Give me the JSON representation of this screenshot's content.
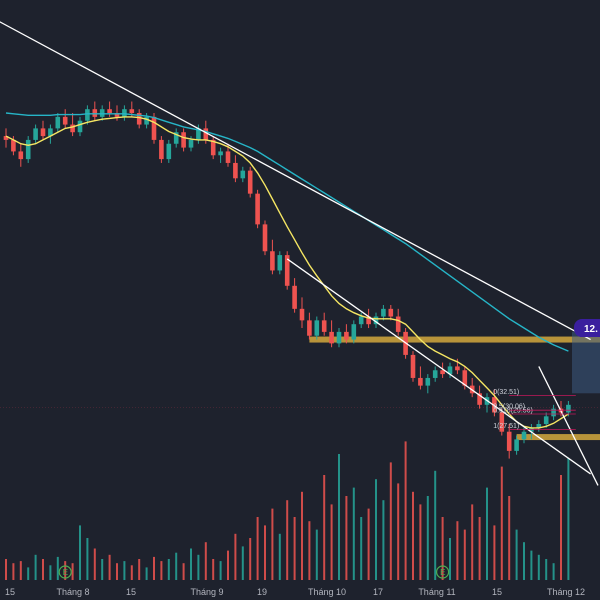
{
  "colors": {
    "background": "#1e222d",
    "up": "#26a69a",
    "down": "#ef5350",
    "vol_up": "#26a69a",
    "vol_down": "#ef5350",
    "ma_fast": "#f5e663",
    "ma_slow": "#26b5c7",
    "trendline": "#ffffff",
    "zone": "#c9a13c",
    "price_tag": "#3a1f9e",
    "projection": "#3d5a80"
  },
  "chart_data": {
    "type": "candlestick",
    "title": "",
    "xlabel": "",
    "ylabel": "",
    "x_ticks": [
      "15",
      "Tháng 8",
      "15",
      "Tháng 9",
      "19",
      "Tháng 10",
      "17",
      "Tháng 11",
      "15",
      "Tháng 12"
    ],
    "ylim": [
      10.6,
      16.2
    ],
    "ohlc": [
      [
        15.6,
        15.7,
        15.45,
        15.55
      ],
      [
        15.55,
        15.6,
        15.35,
        15.4
      ],
      [
        15.4,
        15.5,
        15.2,
        15.3
      ],
      [
        15.3,
        15.6,
        15.25,
        15.55
      ],
      [
        15.55,
        15.75,
        15.5,
        15.7
      ],
      [
        15.7,
        15.8,
        15.55,
        15.6
      ],
      [
        15.6,
        15.75,
        15.5,
        15.7
      ],
      [
        15.7,
        15.9,
        15.65,
        15.85
      ],
      [
        15.85,
        15.95,
        15.7,
        15.75
      ],
      [
        15.75,
        15.9,
        15.6,
        15.65
      ],
      [
        15.65,
        15.85,
        15.6,
        15.8
      ],
      [
        15.8,
        16.0,
        15.75,
        15.95
      ],
      [
        15.95,
        16.05,
        15.8,
        15.85
      ],
      [
        15.85,
        16.0,
        15.8,
        15.95
      ],
      [
        15.95,
        16.05,
        15.85,
        15.9
      ],
      [
        15.9,
        16.0,
        15.8,
        15.85
      ],
      [
        15.85,
        16.0,
        15.8,
        15.95
      ],
      [
        15.95,
        16.05,
        15.85,
        15.9
      ],
      [
        15.9,
        15.95,
        15.7,
        15.75
      ],
      [
        15.75,
        15.9,
        15.7,
        15.85
      ],
      [
        15.85,
        15.9,
        15.5,
        15.55
      ],
      [
        15.55,
        15.6,
        15.25,
        15.3
      ],
      [
        15.3,
        15.55,
        15.25,
        15.5
      ],
      [
        15.5,
        15.7,
        15.45,
        15.65
      ],
      [
        15.65,
        15.7,
        15.4,
        15.45
      ],
      [
        15.45,
        15.6,
        15.4,
        15.55
      ],
      [
        15.55,
        15.75,
        15.5,
        15.7
      ],
      [
        15.7,
        15.8,
        15.5,
        15.55
      ],
      [
        15.55,
        15.6,
        15.3,
        15.35
      ],
      [
        15.35,
        15.45,
        15.25,
        15.4
      ],
      [
        15.4,
        15.5,
        15.2,
        15.25
      ],
      [
        15.25,
        15.35,
        15.0,
        15.05
      ],
      [
        15.05,
        15.2,
        15.0,
        15.15
      ],
      [
        15.15,
        15.2,
        14.8,
        14.85
      ],
      [
        14.85,
        14.9,
        14.4,
        14.45
      ],
      [
        14.45,
        14.5,
        14.05,
        14.1
      ],
      [
        14.1,
        14.25,
        13.8,
        13.85
      ],
      [
        13.85,
        14.1,
        13.8,
        14.05
      ],
      [
        14.05,
        14.1,
        13.6,
        13.65
      ],
      [
        13.65,
        13.75,
        13.3,
        13.35
      ],
      [
        13.35,
        13.5,
        13.1,
        13.2
      ],
      [
        13.2,
        13.3,
        12.95,
        13.0
      ],
      [
        13.0,
        13.25,
        12.95,
        13.2
      ],
      [
        13.2,
        13.3,
        13.0,
        13.05
      ],
      [
        13.05,
        13.2,
        12.85,
        12.9
      ],
      [
        12.9,
        13.1,
        12.85,
        13.05
      ],
      [
        13.05,
        13.15,
        12.9,
        12.95
      ],
      [
        12.95,
        13.2,
        12.9,
        13.15
      ],
      [
        13.15,
        13.3,
        13.1,
        13.25
      ],
      [
        13.25,
        13.35,
        13.1,
        13.15
      ],
      [
        13.15,
        13.3,
        13.1,
        13.25
      ],
      [
        13.25,
        13.4,
        13.2,
        13.35
      ],
      [
        13.35,
        13.4,
        13.2,
        13.25
      ],
      [
        13.25,
        13.35,
        13.0,
        13.05
      ],
      [
        13.05,
        13.1,
        12.7,
        12.75
      ],
      [
        12.75,
        12.8,
        12.4,
        12.45
      ],
      [
        12.45,
        12.6,
        12.3,
        12.35
      ],
      [
        12.35,
        12.5,
        12.25,
        12.45
      ],
      [
        12.45,
        12.6,
        12.4,
        12.55
      ],
      [
        12.55,
        12.65,
        12.45,
        12.5
      ],
      [
        12.5,
        12.65,
        12.45,
        12.6
      ],
      [
        12.6,
        12.7,
        12.5,
        12.55
      ],
      [
        12.55,
        12.6,
        12.3,
        12.35
      ],
      [
        12.35,
        12.45,
        12.2,
        12.25
      ],
      [
        12.25,
        12.35,
        12.05,
        12.1
      ],
      [
        12.1,
        12.25,
        12.0,
        12.2
      ],
      [
        12.2,
        12.3,
        11.95,
        12.0
      ],
      [
        12.0,
        12.05,
        11.7,
        11.75
      ],
      [
        11.75,
        11.85,
        11.4,
        11.5
      ],
      [
        11.5,
        11.7,
        11.45,
        11.65
      ],
      [
        11.65,
        11.8,
        11.6,
        11.75
      ],
      [
        11.75,
        11.85,
        11.65,
        11.8
      ],
      [
        11.8,
        11.9,
        11.75,
        11.85
      ],
      [
        11.85,
        12.0,
        11.8,
        11.95
      ],
      [
        11.95,
        12.1,
        11.9,
        12.05
      ],
      [
        12.05,
        12.15,
        11.95,
        12.0
      ],
      [
        12.0,
        12.15,
        11.95,
        12.1
      ]
    ],
    "volume": [
      0.1,
      0.08,
      0.09,
      0.06,
      0.12,
      0.1,
      0.07,
      0.11,
      0.09,
      0.08,
      0.26,
      0.2,
      0.15,
      0.1,
      0.12,
      0.08,
      0.09,
      0.07,
      0.1,
      0.06,
      0.11,
      0.09,
      0.1,
      0.13,
      0.08,
      0.15,
      0.12,
      0.18,
      0.1,
      0.09,
      0.14,
      0.22,
      0.16,
      0.2,
      0.3,
      0.26,
      0.34,
      0.22,
      0.38,
      0.3,
      0.42,
      0.28,
      0.24,
      0.5,
      0.36,
      0.6,
      0.4,
      0.44,
      0.3,
      0.34,
      0.48,
      0.38,
      0.56,
      0.46,
      0.66,
      0.42,
      0.36,
      0.4,
      0.52,
      0.3,
      0.2,
      0.28,
      0.24,
      0.36,
      0.3,
      0.44,
      0.26,
      0.54,
      0.4,
      0.24,
      0.18,
      0.14,
      0.12,
      0.1,
      0.08,
      0.5,
      0.58
    ],
    "ma_fast": [
      15.6,
      15.55,
      15.5,
      15.48,
      15.5,
      15.55,
      15.6,
      15.65,
      15.7,
      15.72,
      15.75,
      15.78,
      15.8,
      15.82,
      15.83,
      15.84,
      15.85,
      15.85,
      15.84,
      15.82,
      15.78,
      15.72,
      15.66,
      15.62,
      15.58,
      15.56,
      15.55,
      15.55,
      15.53,
      15.5,
      15.46,
      15.4,
      15.34,
      15.25,
      15.12,
      14.96,
      14.78,
      14.6,
      14.42,
      14.25,
      14.08,
      13.92,
      13.78,
      13.65,
      13.52,
      13.42,
      13.35,
      13.3,
      13.26,
      13.23,
      13.22,
      13.22,
      13.22,
      13.2,
      13.15,
      13.05,
      12.95,
      12.86,
      12.8,
      12.75,
      12.7,
      12.66,
      12.6,
      12.52,
      12.42,
      12.32,
      12.22,
      12.1,
      11.98,
      11.88,
      11.82,
      11.8,
      11.8,
      11.82,
      11.86,
      11.92,
      11.98
    ],
    "ma_slow": [
      15.9,
      15.89,
      15.88,
      15.87,
      15.87,
      15.87,
      15.87,
      15.88,
      15.88,
      15.88,
      15.88,
      15.89,
      15.89,
      15.89,
      15.89,
      15.89,
      15.89,
      15.88,
      15.87,
      15.86,
      15.84,
      15.81,
      15.78,
      15.75,
      15.72,
      15.7,
      15.68,
      15.66,
      15.63,
      15.6,
      15.57,
      15.53,
      15.49,
      15.45,
      15.4,
      15.34,
      15.28,
      15.22,
      15.16,
      15.1,
      15.04,
      14.98,
      14.92,
      14.86,
      14.8,
      14.74,
      14.68,
      14.62,
      14.56,
      14.5,
      14.44,
      14.38,
      14.32,
      14.26,
      14.2,
      14.13,
      14.06,
      13.99,
      13.92,
      13.85,
      13.78,
      13.71,
      13.64,
      13.57,
      13.5,
      13.43,
      13.36,
      13.29,
      13.22,
      13.16,
      13.1,
      13.04,
      12.98,
      12.93,
      12.88,
      12.84,
      12.8
    ],
    "trendlines": [
      {
        "from": {
          "i": -3,
          "p": 17.2
        },
        "to": {
          "i": 79,
          "p": 12.95
        }
      },
      {
        "from": {
          "i": 38,
          "p": 14.0
        },
        "to": {
          "i": 79,
          "p": 11.2
        }
      },
      {
        "from": {
          "i": 72,
          "p": 12.6
        },
        "to": {
          "i": 80,
          "p": 11.05
        }
      }
    ],
    "zones": [
      {
        "from_i": 41,
        "price": 12.95
      },
      {
        "from_i": 69,
        "price": 11.68
      }
    ],
    "levels": [
      {
        "label": "1(27.51)",
        "price": 11.78,
        "from_i": 68,
        "to_i": 77
      },
      {
        "label": "0.618(29.56)",
        "price": 11.98,
        "from_i": 68,
        "to_i": 77
      },
      {
        "label": "0.5(30.06)",
        "price": 12.03,
        "from_i": 68,
        "to_i": 77
      },
      {
        "label": "0(32.51)",
        "price": 12.22,
        "from_i": 68,
        "to_i": 77
      }
    ],
    "price_tag": {
      "text": "12.",
      "price": 13.1
    },
    "markers": [
      {
        "label": "E",
        "i": 8
      },
      {
        "label": "E",
        "i": 59
      }
    ]
  }
}
